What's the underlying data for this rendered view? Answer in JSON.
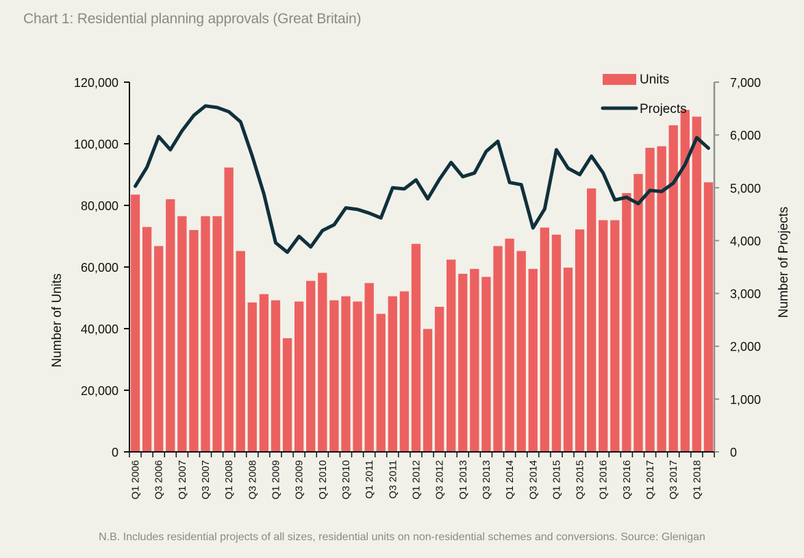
{
  "title": "Chart 1: Residential planning approvals (Great Britain)",
  "footnote": "N.B. Includes residential projects of all sizes, residential units on non-residential schemes  and conversions.  Source: Glenigan",
  "colors": {
    "units": "#ec6160",
    "projects": "#10303c",
    "background": "#f1f1e9"
  },
  "chart_data": {
    "type": "bar+line",
    "title": "Chart 1: Residential planning approvals (Great Britain)",
    "ylabel_left": "Number of Units",
    "ylabel_right": "Number of Projects",
    "ylim_left": [
      0,
      120000
    ],
    "ylim_right": [
      0,
      7000
    ],
    "yticks_left": [
      "0",
      "20,000",
      "40,000",
      "60,000",
      "80,000",
      "100,000",
      "120,000"
    ],
    "yticks_right": [
      "0",
      "1,000",
      "2,000",
      "3,000",
      "4,000",
      "5,000",
      "6,000",
      "7,000"
    ],
    "legend": [
      "Units",
      "Projects"
    ],
    "legend_position": "top-right",
    "categories": [
      "Q1 2006",
      "Q2 2006",
      "Q3 2006",
      "Q4 2006",
      "Q1 2007",
      "Q2 2007",
      "Q3 2007",
      "Q4 2007",
      "Q1 2008",
      "Q2 2008",
      "Q3 2008",
      "Q4 2008",
      "Q1 2009",
      "Q2 2009",
      "Q3 2009",
      "Q4 2009",
      "Q1 2010",
      "Q2 2010",
      "Q3 2010",
      "Q4 2010",
      "Q1 2011",
      "Q2 2011",
      "Q3 2011",
      "Q4 2011",
      "Q1 2012",
      "Q2 2012",
      "Q3 2012",
      "Q4 2012",
      "Q1 2013",
      "Q2 2013",
      "Q3 2013",
      "Q4 2013",
      "Q1 2014",
      "Q2 2014",
      "Q3 2014",
      "Q4 2014",
      "Q1 2015",
      "Q2 2015",
      "Q3 2015",
      "Q4 2015",
      "Q1 2016",
      "Q2 2016",
      "Q3 2016",
      "Q4 2016",
      "Q1 2017",
      "Q2 2017",
      "Q3 2017",
      "Q4 2017",
      "Q1 2018",
      "Q2 2018"
    ],
    "tick_labels": [
      "Q1 2006",
      "Q3 2006",
      "Q1 2007",
      "Q3 2007",
      "Q1 2008",
      "Q3 2008",
      "Q1 2009",
      "Q3 2009",
      "Q1 2010",
      "Q3 2010",
      "Q1 2011",
      "Q3 2011",
      "Q1 2012",
      "Q3 2012",
      "Q1 2013",
      "Q3 2013",
      "Q1 2014",
      "Q3 2014",
      "Q1 2015",
      "Q3 2015",
      "Q1 2016",
      "Q3 2016",
      "Q1 2017",
      "Q3 2017",
      "Q1 2018"
    ],
    "series": [
      {
        "name": "Units",
        "axis": "left",
        "type": "bar",
        "values": [
          83500,
          73000,
          66800,
          82000,
          76500,
          72000,
          76500,
          76500,
          92300,
          65200,
          48500,
          51200,
          49200,
          36900,
          48800,
          55500,
          58100,
          49200,
          50500,
          48800,
          54800,
          44800,
          50500,
          52100,
          67500,
          39900,
          47100,
          62400,
          57800,
          59400,
          56800,
          66800,
          69200,
          65200,
          59400,
          72800,
          70500,
          59800,
          72200,
          85500,
          75200,
          75200,
          84000,
          90200,
          98700,
          99200,
          106000,
          111000,
          108800,
          87500
        ]
      },
      {
        "name": "Projects",
        "axis": "right",
        "type": "line",
        "values": [
          5030,
          5390,
          5970,
          5720,
          6080,
          6370,
          6550,
          6520,
          6440,
          6250,
          5600,
          4880,
          3960,
          3780,
          4080,
          3880,
          4190,
          4300,
          4620,
          4590,
          4520,
          4430,
          5000,
          4980,
          5150,
          4790,
          5160,
          5480,
          5210,
          5280,
          5690,
          5880,
          5100,
          5060,
          4240,
          4600,
          5720,
          5370,
          5250,
          5600,
          5280,
          4770,
          4820,
          4700,
          4950,
          4930,
          5090,
          5440,
          5950,
          5750
        ]
      }
    ]
  }
}
